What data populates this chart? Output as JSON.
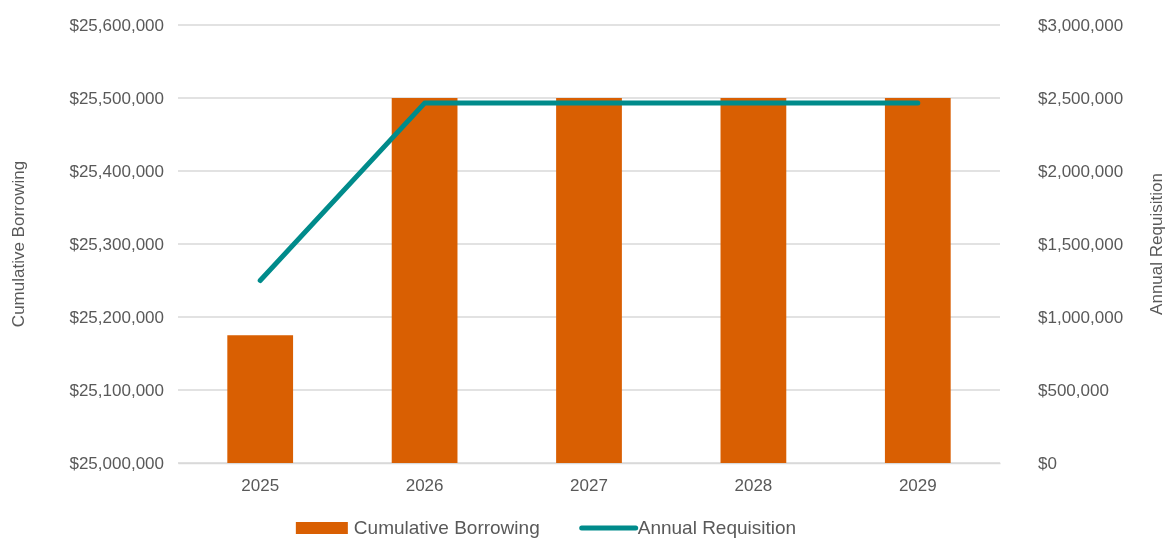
{
  "chart_data": {
    "type": "bar",
    "categories": [
      "2025",
      "2026",
      "2027",
      "2028",
      "2029"
    ],
    "ylabel": "Cumulative Borrowing",
    "y2label": "Annual Requisition",
    "series": [
      {
        "name": "Cumulative Borrowing",
        "color": "#d95f02",
        "values": [
          25175000,
          25500000,
          25500000,
          25500000,
          25500000
        ]
      },
      {
        "name": "Annual Requisition",
        "type": "line",
        "axis": "y2",
        "color": "#008b8b",
        "values": [
          1250000,
          2465000,
          2465000,
          2465000,
          2465000
        ]
      }
    ],
    "ylim": [
      25000000,
      25600000
    ],
    "yticks": [
      {
        "value": 25000000,
        "label": "$25,000,000"
      },
      {
        "value": 25100000,
        "label": "$25,100,000"
      },
      {
        "value": 25200000,
        "label": "$25,200,000"
      },
      {
        "value": 25300000,
        "label": "$25,300,000"
      },
      {
        "value": 25400000,
        "label": "$25,400,000"
      },
      {
        "value": 25500000,
        "label": "$25,500,000"
      },
      {
        "value": 25600000,
        "label": "$25,600,000"
      }
    ],
    "y2lim": [
      0,
      3000000
    ],
    "y2ticks": [
      {
        "value": 0,
        "label": "$0"
      },
      {
        "value": 500000,
        "label": "$500,000"
      },
      {
        "value": 1000000,
        "label": "$1,000,000"
      },
      {
        "value": 1500000,
        "label": "$1,500,000"
      },
      {
        "value": 2000000,
        "label": "$2,000,000"
      },
      {
        "value": 2500000,
        "label": "$2,500,000"
      },
      {
        "value": 3000000,
        "label": "$3,000,000"
      }
    ],
    "grid": "y",
    "legend": "bottom",
    "marker": "none",
    "line_style": "solid"
  }
}
